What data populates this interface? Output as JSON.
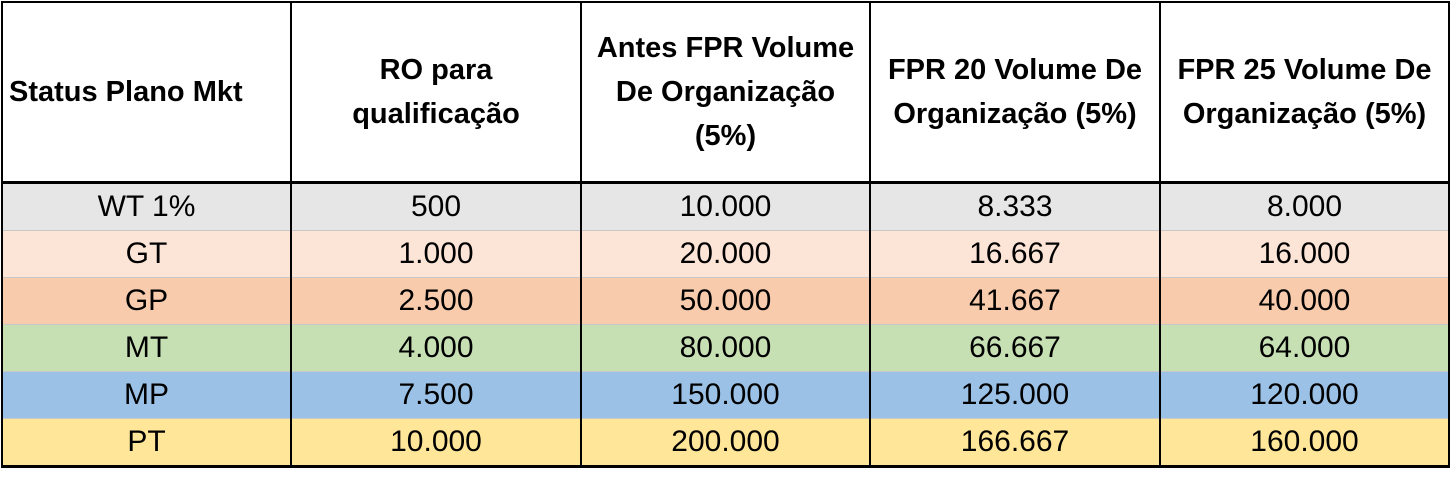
{
  "table": {
    "headers": [
      "Status Plano Mkt",
      "RO para qualificação",
      "Antes FPR Volume De Organização (5%)",
      "FPR 20 Volume De Organização (5%)",
      "FPR 25 Volume De Organização (5%)"
    ],
    "rows": [
      {
        "color": "#e7e6e6",
        "cells": [
          "WT  1%",
          "500",
          "10.000",
          "8.333",
          "8.000"
        ]
      },
      {
        "color": "#fce4d6",
        "cells": [
          "GT",
          "1.000",
          "20.000",
          "16.667",
          "16.000"
        ]
      },
      {
        "color": "#f8cbad",
        "cells": [
          "GP",
          "2.500",
          "50.000",
          "41.667",
          "40.000"
        ]
      },
      {
        "color": "#c6e0b4",
        "cells": [
          "MT",
          "4.000",
          "80.000",
          "66.667",
          "64.000"
        ]
      },
      {
        "color": "#9bc2e6",
        "cells": [
          "MP",
          "7.500",
          "150.000",
          "125.000",
          "120.000"
        ]
      },
      {
        "color": "#ffe699",
        "cells": [
          "PT",
          "10.000",
          "200.000",
          "166.667",
          "160.000"
        ]
      }
    ]
  }
}
